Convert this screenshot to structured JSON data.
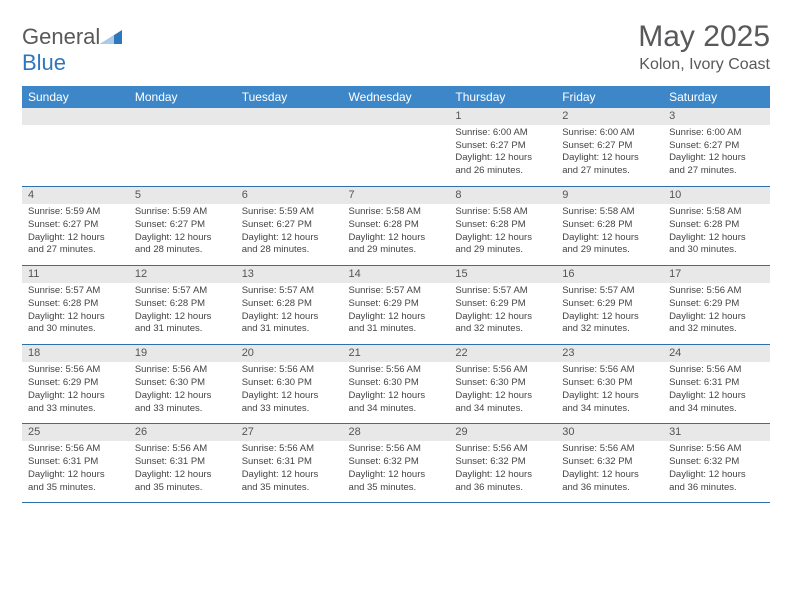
{
  "brand": {
    "general": "General",
    "blue": "Blue"
  },
  "title": "May 2025",
  "location": "Kolon, Ivory Coast",
  "header_bg": "#3d87c9",
  "header_fg": "#ffffff",
  "daynum_bg": "#e8e8e8",
  "border_color": "#2f6faa",
  "logo_color": "#2f77bc",
  "text_color": "#58595b",
  "days": [
    "Sunday",
    "Monday",
    "Tuesday",
    "Wednesday",
    "Thursday",
    "Friday",
    "Saturday"
  ],
  "weeks": [
    [
      null,
      null,
      null,
      null,
      {
        "n": "1",
        "sr": "6:00 AM",
        "ss": "6:27 PM",
        "dl": "12 hours and 26 minutes."
      },
      {
        "n": "2",
        "sr": "6:00 AM",
        "ss": "6:27 PM",
        "dl": "12 hours and 27 minutes."
      },
      {
        "n": "3",
        "sr": "6:00 AM",
        "ss": "6:27 PM",
        "dl": "12 hours and 27 minutes."
      }
    ],
    [
      {
        "n": "4",
        "sr": "5:59 AM",
        "ss": "6:27 PM",
        "dl": "12 hours and 27 minutes."
      },
      {
        "n": "5",
        "sr": "5:59 AM",
        "ss": "6:27 PM",
        "dl": "12 hours and 28 minutes."
      },
      {
        "n": "6",
        "sr": "5:59 AM",
        "ss": "6:27 PM",
        "dl": "12 hours and 28 minutes."
      },
      {
        "n": "7",
        "sr": "5:58 AM",
        "ss": "6:28 PM",
        "dl": "12 hours and 29 minutes."
      },
      {
        "n": "8",
        "sr": "5:58 AM",
        "ss": "6:28 PM",
        "dl": "12 hours and 29 minutes."
      },
      {
        "n": "9",
        "sr": "5:58 AM",
        "ss": "6:28 PM",
        "dl": "12 hours and 29 minutes."
      },
      {
        "n": "10",
        "sr": "5:58 AM",
        "ss": "6:28 PM",
        "dl": "12 hours and 30 minutes."
      }
    ],
    [
      {
        "n": "11",
        "sr": "5:57 AM",
        "ss": "6:28 PM",
        "dl": "12 hours and 30 minutes."
      },
      {
        "n": "12",
        "sr": "5:57 AM",
        "ss": "6:28 PM",
        "dl": "12 hours and 31 minutes."
      },
      {
        "n": "13",
        "sr": "5:57 AM",
        "ss": "6:28 PM",
        "dl": "12 hours and 31 minutes."
      },
      {
        "n": "14",
        "sr": "5:57 AM",
        "ss": "6:29 PM",
        "dl": "12 hours and 31 minutes."
      },
      {
        "n": "15",
        "sr": "5:57 AM",
        "ss": "6:29 PM",
        "dl": "12 hours and 32 minutes."
      },
      {
        "n": "16",
        "sr": "5:57 AM",
        "ss": "6:29 PM",
        "dl": "12 hours and 32 minutes."
      },
      {
        "n": "17",
        "sr": "5:56 AM",
        "ss": "6:29 PM",
        "dl": "12 hours and 32 minutes."
      }
    ],
    [
      {
        "n": "18",
        "sr": "5:56 AM",
        "ss": "6:29 PM",
        "dl": "12 hours and 33 minutes."
      },
      {
        "n": "19",
        "sr": "5:56 AM",
        "ss": "6:30 PM",
        "dl": "12 hours and 33 minutes."
      },
      {
        "n": "20",
        "sr": "5:56 AM",
        "ss": "6:30 PM",
        "dl": "12 hours and 33 minutes."
      },
      {
        "n": "21",
        "sr": "5:56 AM",
        "ss": "6:30 PM",
        "dl": "12 hours and 34 minutes."
      },
      {
        "n": "22",
        "sr": "5:56 AM",
        "ss": "6:30 PM",
        "dl": "12 hours and 34 minutes."
      },
      {
        "n": "23",
        "sr": "5:56 AM",
        "ss": "6:30 PM",
        "dl": "12 hours and 34 minutes."
      },
      {
        "n": "24",
        "sr": "5:56 AM",
        "ss": "6:31 PM",
        "dl": "12 hours and 34 minutes."
      }
    ],
    [
      {
        "n": "25",
        "sr": "5:56 AM",
        "ss": "6:31 PM",
        "dl": "12 hours and 35 minutes."
      },
      {
        "n": "26",
        "sr": "5:56 AM",
        "ss": "6:31 PM",
        "dl": "12 hours and 35 minutes."
      },
      {
        "n": "27",
        "sr": "5:56 AM",
        "ss": "6:31 PM",
        "dl": "12 hours and 35 minutes."
      },
      {
        "n": "28",
        "sr": "5:56 AM",
        "ss": "6:32 PM",
        "dl": "12 hours and 35 minutes."
      },
      {
        "n": "29",
        "sr": "5:56 AM",
        "ss": "6:32 PM",
        "dl": "12 hours and 36 minutes."
      },
      {
        "n": "30",
        "sr": "5:56 AM",
        "ss": "6:32 PM",
        "dl": "12 hours and 36 minutes."
      },
      {
        "n": "31",
        "sr": "5:56 AM",
        "ss": "6:32 PM",
        "dl": "12 hours and 36 minutes."
      }
    ]
  ],
  "labels": {
    "sunrise": "Sunrise:",
    "sunset": "Sunset:",
    "daylight": "Daylight:"
  }
}
